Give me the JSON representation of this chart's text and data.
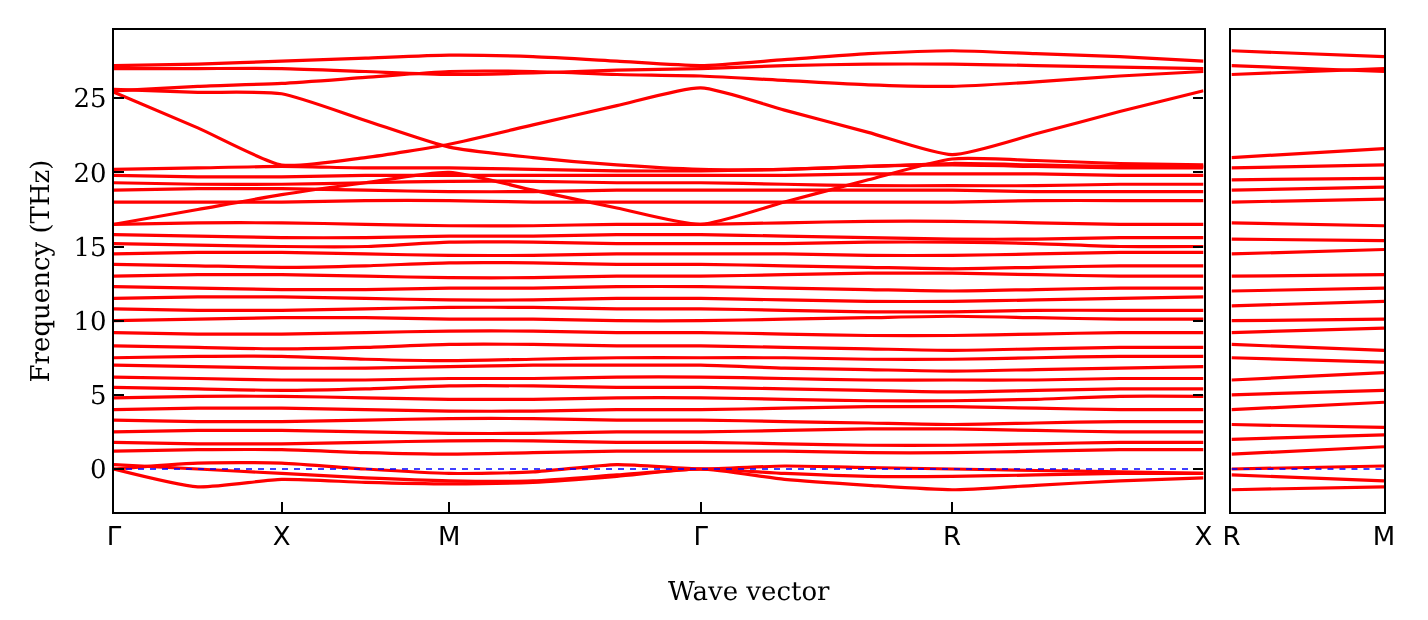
{
  "chart_data": [
    {
      "type": "line",
      "xlabel": "Wave vector",
      "ylabel": "Frequency (THz)",
      "marker": "none",
      "line_style": "solid",
      "categories": [
        "Γ",
        null,
        "X",
        null,
        "M",
        null,
        null,
        "Γ",
        null,
        null,
        "R",
        null,
        null,
        "X"
      ],
      "ylim": [
        -2.9,
        29.6
      ],
      "yticks": [
        0,
        5,
        10,
        15,
        20,
        25
      ],
      "ref_lines": [
        {
          "axis": "y",
          "value": 0,
          "color": "#0000ff",
          "line_style": "dotted"
        }
      ],
      "series": [
        {
          "color": "#ff0000",
          "values": [
            27.2,
            27.3,
            27.5,
            27.7,
            27.9,
            27.8,
            27.5,
            27.2,
            27.6,
            28.0,
            28.2,
            28.0,
            27.8,
            27.5
          ]
        },
        {
          "color": "#ff0000",
          "values": [
            27.0,
            27.0,
            27.0,
            26.8,
            26.6,
            26.7,
            26.9,
            27.0,
            27.2,
            27.3,
            27.3,
            27.2,
            27.1,
            27.0
          ]
        },
        {
          "color": "#ff0000",
          "values": [
            25.5,
            25.8,
            26.0,
            26.4,
            26.8,
            26.8,
            26.6,
            26.5,
            26.2,
            25.9,
            25.8,
            26.1,
            26.5,
            26.8
          ]
        },
        {
          "color": "#ff0000",
          "values": [
            25.6,
            25.4,
            25.3,
            23.5,
            21.7,
            21.0,
            20.5,
            20.2,
            20.2,
            20.4,
            20.6,
            20.5,
            20.4,
            20.4
          ]
        },
        {
          "color": "#ff0000",
          "values": [
            25.4,
            23.0,
            20.5,
            21.0,
            21.9,
            23.2,
            24.5,
            25.7,
            24.2,
            22.7,
            21.2,
            22.6,
            24.1,
            25.5
          ]
        },
        {
          "color": "#ff0000",
          "values": [
            16.5,
            17.5,
            18.5,
            19.3,
            20.0,
            18.8,
            17.6,
            16.5,
            18.0,
            19.5,
            20.9,
            20.8,
            20.6,
            20.5
          ]
        },
        {
          "color": "#ff0000",
          "values": [
            20.2,
            20.3,
            20.4,
            20.3,
            20.3,
            20.2,
            20.1,
            20.1,
            20.2,
            20.4,
            20.5,
            20.4,
            20.3,
            20.3
          ]
        },
        {
          "color": "#ff0000",
          "values": [
            19.8,
            19.7,
            19.7,
            19.8,
            19.8,
            19.8,
            19.8,
            19.8,
            19.8,
            19.9,
            19.9,
            19.9,
            19.8,
            19.8
          ]
        },
        {
          "color": "#ff0000",
          "values": [
            19.3,
            19.2,
            19.2,
            19.3,
            19.4,
            19.4,
            19.3,
            19.3,
            19.2,
            19.1,
            19.1,
            19.1,
            19.2,
            19.2
          ]
        },
        {
          "color": "#ff0000",
          "values": [
            18.8,
            18.9,
            18.9,
            18.8,
            18.7,
            18.7,
            18.8,
            18.8,
            18.8,
            18.8,
            18.8,
            18.7,
            18.7,
            18.7
          ]
        },
        {
          "color": "#ff0000",
          "values": [
            18.0,
            18.0,
            18.0,
            18.1,
            18.1,
            18.0,
            18.0,
            18.0,
            18.0,
            18.0,
            18.0,
            18.1,
            18.1,
            18.1
          ]
        },
        {
          "color": "#ff0000",
          "values": [
            16.5,
            16.6,
            16.6,
            16.5,
            16.4,
            16.4,
            16.5,
            16.5,
            16.6,
            16.7,
            16.7,
            16.6,
            16.5,
            16.5
          ]
        },
        {
          "color": "#ff0000",
          "values": [
            15.8,
            15.7,
            15.6,
            15.6,
            15.7,
            15.7,
            15.8,
            15.8,
            15.7,
            15.6,
            15.5,
            15.5,
            15.6,
            15.6
          ]
        },
        {
          "color": "#ff0000",
          "values": [
            15.2,
            15.1,
            15.0,
            15.0,
            15.3,
            15.3,
            15.2,
            15.2,
            15.2,
            15.3,
            15.3,
            15.2,
            15.0,
            15.0
          ]
        },
        {
          "color": "#ff0000",
          "values": [
            14.5,
            14.6,
            14.6,
            14.5,
            14.4,
            14.4,
            14.5,
            14.5,
            14.5,
            14.4,
            14.4,
            14.5,
            14.6,
            14.6
          ]
        },
        {
          "color": "#ff0000",
          "values": [
            13.8,
            13.7,
            13.6,
            13.7,
            13.9,
            13.9,
            13.8,
            13.8,
            13.7,
            13.6,
            13.5,
            13.6,
            13.7,
            13.7
          ]
        },
        {
          "color": "#ff0000",
          "values": [
            13.0,
            13.1,
            13.1,
            13.0,
            12.9,
            12.9,
            13.0,
            13.0,
            13.1,
            13.2,
            13.2,
            13.1,
            13.0,
            13.0
          ]
        },
        {
          "color": "#ff0000",
          "values": [
            12.3,
            12.2,
            12.1,
            12.1,
            12.2,
            12.2,
            12.3,
            12.3,
            12.2,
            12.1,
            12.0,
            12.1,
            12.2,
            12.2
          ]
        },
        {
          "color": "#ff0000",
          "values": [
            11.5,
            11.6,
            11.6,
            11.5,
            11.4,
            11.4,
            11.5,
            11.5,
            11.4,
            11.3,
            11.3,
            11.4,
            11.5,
            11.6
          ]
        },
        {
          "color": "#ff0000",
          "values": [
            10.8,
            10.7,
            10.7,
            10.8,
            10.9,
            10.9,
            10.8,
            10.8,
            10.7,
            10.6,
            10.6,
            10.7,
            10.7,
            10.7
          ]
        },
        {
          "color": "#ff0000",
          "values": [
            10.0,
            10.1,
            10.2,
            10.2,
            10.1,
            10.1,
            10.0,
            10.0,
            10.1,
            10.2,
            10.3,
            10.2,
            10.1,
            10.1
          ]
        },
        {
          "color": "#ff0000",
          "values": [
            9.2,
            9.1,
            9.1,
            9.2,
            9.3,
            9.3,
            9.2,
            9.2,
            9.1,
            9.0,
            9.0,
            9.1,
            9.2,
            9.2
          ]
        },
        {
          "color": "#ff0000",
          "values": [
            8.3,
            8.2,
            8.1,
            8.2,
            8.4,
            8.4,
            8.3,
            8.3,
            8.2,
            8.1,
            8.0,
            8.1,
            8.2,
            8.2
          ]
        },
        {
          "color": "#ff0000",
          "values": [
            7.5,
            7.6,
            7.6,
            7.4,
            7.3,
            7.4,
            7.5,
            7.5,
            7.5,
            7.4,
            7.4,
            7.5,
            7.6,
            7.6
          ]
        },
        {
          "color": "#ff0000",
          "values": [
            7.0,
            6.9,
            6.8,
            6.8,
            6.9,
            7.0,
            7.0,
            7.0,
            6.8,
            6.7,
            6.6,
            6.7,
            6.8,
            6.9
          ]
        },
        {
          "color": "#ff0000",
          "values": [
            6.2,
            6.1,
            6.0,
            6.0,
            6.1,
            6.1,
            6.2,
            6.2,
            6.1,
            6.0,
            6.0,
            6.0,
            6.1,
            6.1
          ]
        },
        {
          "color": "#ff0000",
          "values": [
            5.5,
            5.4,
            5.3,
            5.4,
            5.6,
            5.6,
            5.5,
            5.5,
            5.4,
            5.3,
            5.2,
            5.3,
            5.4,
            5.4
          ]
        },
        {
          "color": "#ff0000",
          "values": [
            4.8,
            4.9,
            4.9,
            4.8,
            4.7,
            4.7,
            4.8,
            4.8,
            4.7,
            4.6,
            4.6,
            4.7,
            4.9,
            4.9
          ]
        },
        {
          "color": "#ff0000",
          "values": [
            4.0,
            4.1,
            4.1,
            4.0,
            3.9,
            3.9,
            4.0,
            4.0,
            4.1,
            4.2,
            4.2,
            4.1,
            4.0,
            4.0
          ]
        },
        {
          "color": "#ff0000",
          "values": [
            3.3,
            3.2,
            3.2,
            3.3,
            3.4,
            3.4,
            3.3,
            3.3,
            3.2,
            3.1,
            3.0,
            3.1,
            3.2,
            3.2
          ]
        },
        {
          "color": "#ff0000",
          "values": [
            2.5,
            2.6,
            2.6,
            2.5,
            2.4,
            2.4,
            2.5,
            2.5,
            2.6,
            2.7,
            2.7,
            2.6,
            2.5,
            2.5
          ]
        },
        {
          "color": "#ff0000",
          "values": [
            1.8,
            1.7,
            1.7,
            1.8,
            1.9,
            1.9,
            1.8,
            1.8,
            1.7,
            1.6,
            1.6,
            1.7,
            1.8,
            1.8
          ]
        },
        {
          "color": "#ff0000",
          "values": [
            1.2,
            1.3,
            1.3,
            1.1,
            1.0,
            1.1,
            1.2,
            1.2,
            1.2,
            1.1,
            1.1,
            1.2,
            1.3,
            1.3
          ]
        },
        {
          "color": "#ff0000",
          "values": [
            0,
            0.4,
            0.4,
            0,
            -0.3,
            -0.2,
            0.3,
            0,
            0.2,
            0.1,
            0,
            -0.1,
            -0.2,
            -0.3
          ]
        },
        {
          "color": "#ff0000",
          "values": [
            0.3,
            0,
            -0.3,
            -0.6,
            -0.8,
            -0.8,
            -0.4,
            0,
            -0.3,
            -0.5,
            -0.5,
            -0.4,
            -0.3,
            -0.3
          ]
        },
        {
          "color": "#ff0000",
          "values": [
            0,
            -1.2,
            -0.7,
            -0.9,
            -1.0,
            -0.9,
            -0.5,
            0,
            -0.7,
            -1.1,
            -1.4,
            -1.1,
            -0.8,
            -0.6
          ]
        }
      ]
    },
    {
      "type": "line",
      "marker": "none",
      "line_style": "solid",
      "tick_labels": "x",
      "categories": [
        "R",
        "M"
      ],
      "ylim": [
        -2.9,
        29.6
      ],
      "yticks": [
        0,
        5,
        10,
        15,
        20,
        25
      ],
      "ref_lines": [
        {
          "axis": "y",
          "value": 0,
          "color": "#0000ff",
          "line_style": "dotted"
        }
      ],
      "series": [
        {
          "color": "#ff0000",
          "values": [
            28.2,
            27.8
          ]
        },
        {
          "color": "#ff0000",
          "values": [
            27.2,
            26.8
          ]
        },
        {
          "color": "#ff0000",
          "values": [
            26.6,
            27.0
          ]
        },
        {
          "color": "#ff0000",
          "values": [
            21.0,
            21.6
          ]
        },
        {
          "color": "#ff0000",
          "values": [
            20.3,
            20.5
          ]
        },
        {
          "color": "#ff0000",
          "values": [
            19.5,
            19.6
          ]
        },
        {
          "color": "#ff0000",
          "values": [
            18.8,
            19.0
          ]
        },
        {
          "color": "#ff0000",
          "values": [
            18.0,
            18.2
          ]
        },
        {
          "color": "#ff0000",
          "values": [
            16.6,
            16.4
          ]
        },
        {
          "color": "#ff0000",
          "values": [
            15.5,
            15.4
          ]
        },
        {
          "color": "#ff0000",
          "values": [
            14.5,
            14.8
          ]
        },
        {
          "color": "#ff0000",
          "values": [
            13.0,
            13.1
          ]
        },
        {
          "color": "#ff0000",
          "values": [
            12.0,
            12.2
          ]
        },
        {
          "color": "#ff0000",
          "values": [
            11.0,
            11.3
          ]
        },
        {
          "color": "#ff0000",
          "values": [
            10.0,
            10.1
          ]
        },
        {
          "color": "#ff0000",
          "values": [
            9.2,
            9.5
          ]
        },
        {
          "color": "#ff0000",
          "values": [
            8.4,
            8.0
          ]
        },
        {
          "color": "#ff0000",
          "values": [
            7.5,
            7.2
          ]
        },
        {
          "color": "#ff0000",
          "values": [
            6.0,
            6.5
          ]
        },
        {
          "color": "#ff0000",
          "values": [
            5.0,
            5.3
          ]
        },
        {
          "color": "#ff0000",
          "values": [
            4.0,
            4.5
          ]
        },
        {
          "color": "#ff0000",
          "values": [
            3.0,
            2.8
          ]
        },
        {
          "color": "#ff0000",
          "values": [
            2.0,
            2.3
          ]
        },
        {
          "color": "#ff0000",
          "values": [
            1.0,
            1.5
          ]
        },
        {
          "color": "#ff0000",
          "values": [
            0,
            0.2
          ]
        },
        {
          "color": "#ff0000",
          "values": [
            -0.4,
            -0.8
          ]
        },
        {
          "color": "#ff0000",
          "values": [
            -1.4,
            -1.2
          ]
        }
      ]
    }
  ]
}
